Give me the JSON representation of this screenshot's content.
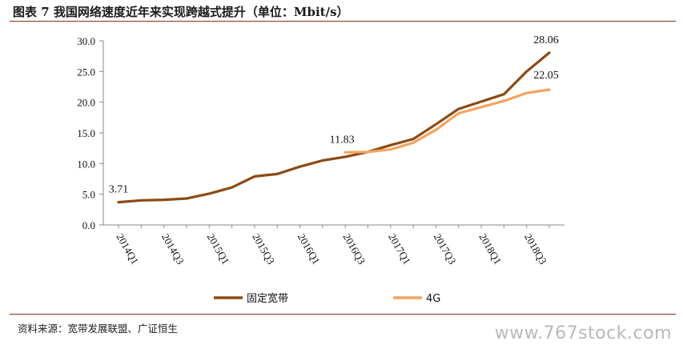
{
  "header": {
    "title": "图表 7 我国网络速度近年来实现跨越式提升（单位：Mbit/s）"
  },
  "footer": {
    "source": "资料来源：宽带发展联盟、广证恒生",
    "watermark": "www.767stock.com"
  },
  "colors": {
    "rule": "#8b2f1c",
    "fixed_broadband": "#8b4a13",
    "mobile_4g": "#f4a460",
    "axis": "#888888"
  },
  "chart_data": {
    "type": "line",
    "title": "",
    "xlabel": "",
    "ylabel": "",
    "ylim": [
      0,
      30
    ],
    "yticks": [
      "0.0",
      "5.0",
      "10.0",
      "15.0",
      "20.0",
      "25.0",
      "30.0"
    ],
    "x": [
      "2014Q1",
      "2014Q2",
      "2014Q3",
      "2014Q4",
      "2015Q1",
      "2015Q2",
      "2015Q3",
      "2015Q4",
      "2016Q1",
      "2016Q2",
      "2016Q3",
      "2016Q4",
      "2017Q1",
      "2017Q2",
      "2017Q3",
      "2017Q4",
      "2018Q1",
      "2018Q2",
      "2018Q3",
      "2018Q4"
    ],
    "xtick_labels": [
      "2014Q1",
      "2014Q3",
      "2015Q1",
      "2015Q3",
      "2016Q1",
      "2016Q3",
      "2017Q1",
      "2017Q3",
      "2018Q1",
      "2018Q3"
    ],
    "grid": false,
    "legend_position": "bottom",
    "series": [
      {
        "name": "固定宽带",
        "values": [
          3.71,
          4.0,
          4.1,
          4.3,
          5.1,
          6.1,
          7.9,
          8.3,
          9.5,
          10.5,
          11.1,
          11.9,
          13.0,
          14.0,
          16.4,
          18.9,
          20.1,
          21.3,
          25.0,
          28.06
        ]
      },
      {
        "name": "4G",
        "values": [
          null,
          null,
          null,
          null,
          null,
          null,
          null,
          null,
          null,
          null,
          11.83,
          11.9,
          12.3,
          13.4,
          15.5,
          18.2,
          19.2,
          20.2,
          21.5,
          22.05
        ]
      }
    ],
    "annotations": [
      {
        "series": 0,
        "index": 0,
        "text": "3.71"
      },
      {
        "series": 1,
        "index": 10,
        "text": "11.83"
      },
      {
        "series": 0,
        "index": 19,
        "text": "28.06"
      },
      {
        "series": 1,
        "index": 19,
        "text": "22.05"
      }
    ]
  }
}
